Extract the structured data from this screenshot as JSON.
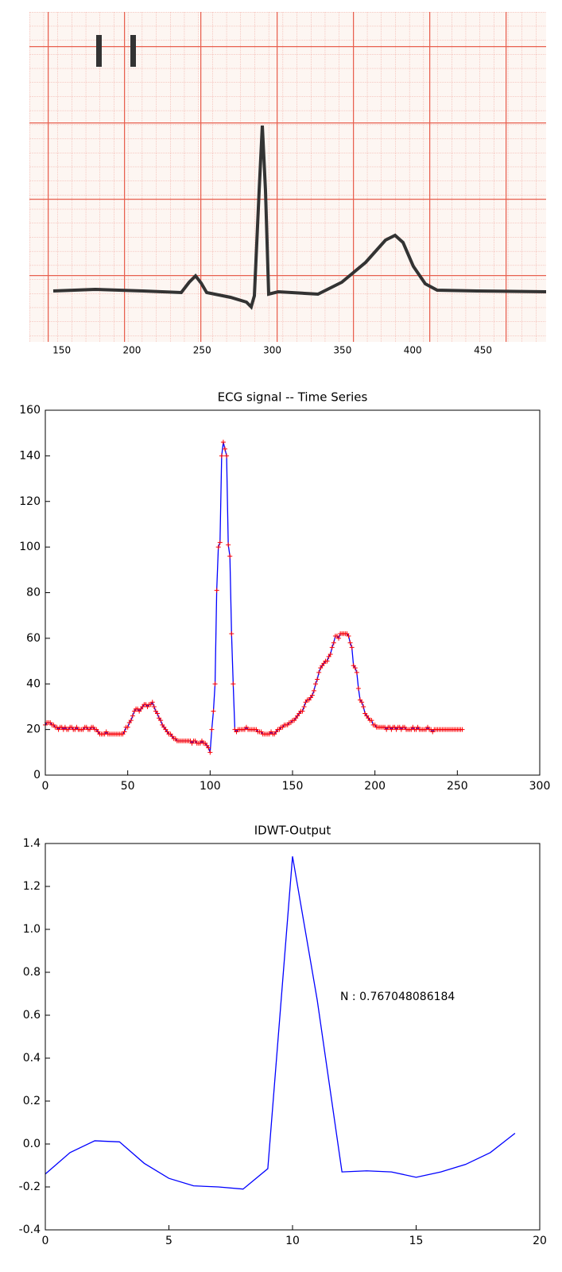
{
  "chart_data": [
    {
      "type": "image",
      "xlim": [
        127,
        495
      ],
      "xticks": [
        150,
        200,
        250,
        300,
        350,
        400,
        450
      ]
    },
    {
      "type": "line",
      "title": "ECG signal -- Time Series",
      "xlim": [
        0,
        300
      ],
      "ylim": [
        0,
        160
      ],
      "xticks": [
        0,
        50,
        100,
        150,
        200,
        250,
        300
      ],
      "yticks": [
        0,
        20,
        40,
        60,
        80,
        100,
        120,
        140,
        160
      ],
      "marker": "+",
      "marker_color": "#ff0000",
      "x": [
        0,
        1,
        2,
        3,
        4,
        5,
        6,
        7,
        8,
        9,
        10,
        11,
        12,
        13,
        14,
        15,
        16,
        17,
        18,
        19,
        20,
        21,
        22,
        23,
        24,
        25,
        26,
        27,
        28,
        29,
        30,
        31,
        32,
        33,
        34,
        35,
        36,
        37,
        38,
        39,
        40,
        41,
        42,
        43,
        44,
        45,
        46,
        47,
        48,
        49,
        50,
        51,
        52,
        53,
        54,
        55,
        56,
        57,
        58,
        59,
        60,
        61,
        62,
        63,
        64,
        65,
        66,
        67,
        68,
        69,
        70,
        71,
        72,
        73,
        74,
        75,
        76,
        77,
        78,
        79,
        80,
        81,
        82,
        83,
        84,
        85,
        86,
        87,
        88,
        89,
        90,
        91,
        92,
        93,
        94,
        95,
        96,
        97,
        98,
        99,
        100,
        101,
        102,
        103,
        104,
        105,
        106,
        107,
        108,
        109,
        110,
        111,
        112,
        113,
        114,
        115,
        116,
        117,
        118,
        119,
        120,
        121,
        122,
        123,
        124,
        125,
        126,
        127,
        128,
        129,
        130,
        131,
        132,
        133,
        134,
        135,
        136,
        137,
        138,
        139,
        140,
        141,
        142,
        143,
        144,
        145,
        146,
        147,
        148,
        149,
        150,
        151,
        152,
        153,
        154,
        155,
        156,
        157,
        158,
        159,
        160,
        161,
        162,
        163,
        164,
        165,
        166,
        167,
        168,
        169,
        170,
        171,
        172,
        173,
        174,
        175,
        176,
        177,
        178,
        179,
        180,
        181,
        182,
        183,
        184,
        185,
        186,
        187,
        188,
        189,
        190,
        191,
        192,
        193,
        194,
        195,
        196,
        197,
        198,
        199,
        200,
        201,
        202,
        203,
        204,
        205,
        206,
        207,
        208,
        209,
        210,
        211,
        212,
        213,
        214,
        215,
        216,
        217,
        218,
        219,
        220,
        221,
        222,
        223,
        224,
        225,
        226,
        227,
        228,
        229,
        230,
        231,
        232,
        233,
        234,
        235,
        236,
        237,
        238,
        239,
        240,
        241,
        242,
        243,
        244,
        245,
        246,
        247,
        248,
        249,
        250,
        251,
        252,
        253
      ],
      "series": [
        {
          "color": "#0000ff",
          "values": [
            22,
            23,
            23,
            23,
            22,
            22,
            21,
            21,
            20,
            21,
            21,
            20,
            21,
            20,
            20,
            21,
            21,
            20,
            20,
            21,
            20,
            20,
            20,
            20,
            21,
            21,
            20,
            20,
            21,
            21,
            20,
            20,
            19,
            18,
            18,
            18,
            18,
            19,
            18,
            18,
            18,
            18,
            18,
            18,
            18,
            18,
            18,
            18,
            19,
            21,
            21,
            23,
            24,
            26,
            28,
            29,
            29,
            28,
            29,
            30,
            31,
            31,
            30,
            31,
            31,
            32,
            30,
            28,
            27,
            25,
            24,
            22,
            21,
            20,
            19,
            18,
            18,
            17,
            16,
            16,
            15,
            15,
            15,
            15,
            15,
            15,
            15,
            15,
            15,
            14,
            15,
            15,
            14,
            14,
            14,
            15,
            14,
            14,
            13,
            12,
            10,
            20,
            28,
            40,
            81,
            100,
            102,
            140,
            146,
            143,
            140,
            101,
            96,
            62,
            40,
            20,
            19,
            20,
            20,
            20,
            20,
            20,
            21,
            20,
            20,
            20,
            20,
            20,
            20,
            19,
            19,
            19,
            18,
            18,
            18,
            18,
            18,
            19,
            18,
            18,
            19,
            20,
            20,
            21,
            21,
            22,
            22,
            22,
            23,
            23,
            24,
            24,
            25,
            26,
            27,
            28,
            28,
            30,
            32,
            33,
            33,
            34,
            35,
            37,
            40,
            42,
            45,
            47,
            48,
            49,
            50,
            50,
            52,
            53,
            56,
            58,
            61,
            61,
            60,
            62,
            62,
            62,
            62,
            62,
            61,
            58,
            56,
            48,
            47,
            45,
            38,
            33,
            32,
            30,
            27,
            26,
            25,
            24,
            24,
            22,
            22,
            21,
            21,
            21,
            21,
            21,
            21,
            20,
            21,
            21,
            20,
            21,
            21,
            20,
            21,
            21,
            20,
            21,
            21,
            20,
            20,
            20,
            20,
            21,
            20,
            20,
            21,
            20,
            20,
            20,
            20,
            20,
            21,
            20,
            20,
            19,
            20,
            20,
            20,
            20,
            20,
            20,
            20,
            20,
            20,
            20,
            20,
            20,
            20,
            20,
            20,
            20,
            20,
            20
          ]
        }
      ]
    },
    {
      "type": "line",
      "title": "IDWT-Output",
      "xlim": [
        0,
        20
      ],
      "ylim": [
        -0.4,
        1.4
      ],
      "xticks": [
        0,
        5,
        10,
        15,
        20
      ],
      "yticks": [
        -0.4,
        -0.2,
        {
          "value": 0,
          "label": "0.0"
        },
        0.2,
        0.4,
        0.6,
        0.8,
        {
          "value": 1,
          "label": "1.0"
        },
        1.2,
        1.4
      ],
      "annotation": "N : 0.767048086184",
      "x": [
        0,
        1,
        2,
        3,
        4,
        5,
        6,
        7,
        8,
        9,
        10,
        11,
        12,
        13,
        14,
        15,
        16,
        17,
        18,
        19
      ],
      "series": [
        {
          "color": "#0000ff",
          "values": [
            -0.14,
            -0.04,
            0.015,
            0.01,
            -0.09,
            -0.16,
            -0.195,
            -0.2,
            -0.21,
            -0.115,
            1.34,
            0.67,
            -0.13,
            -0.125,
            -0.13,
            -0.155,
            -0.13,
            -0.095,
            -0.04,
            0.05
          ]
        }
      ]
    }
  ]
}
